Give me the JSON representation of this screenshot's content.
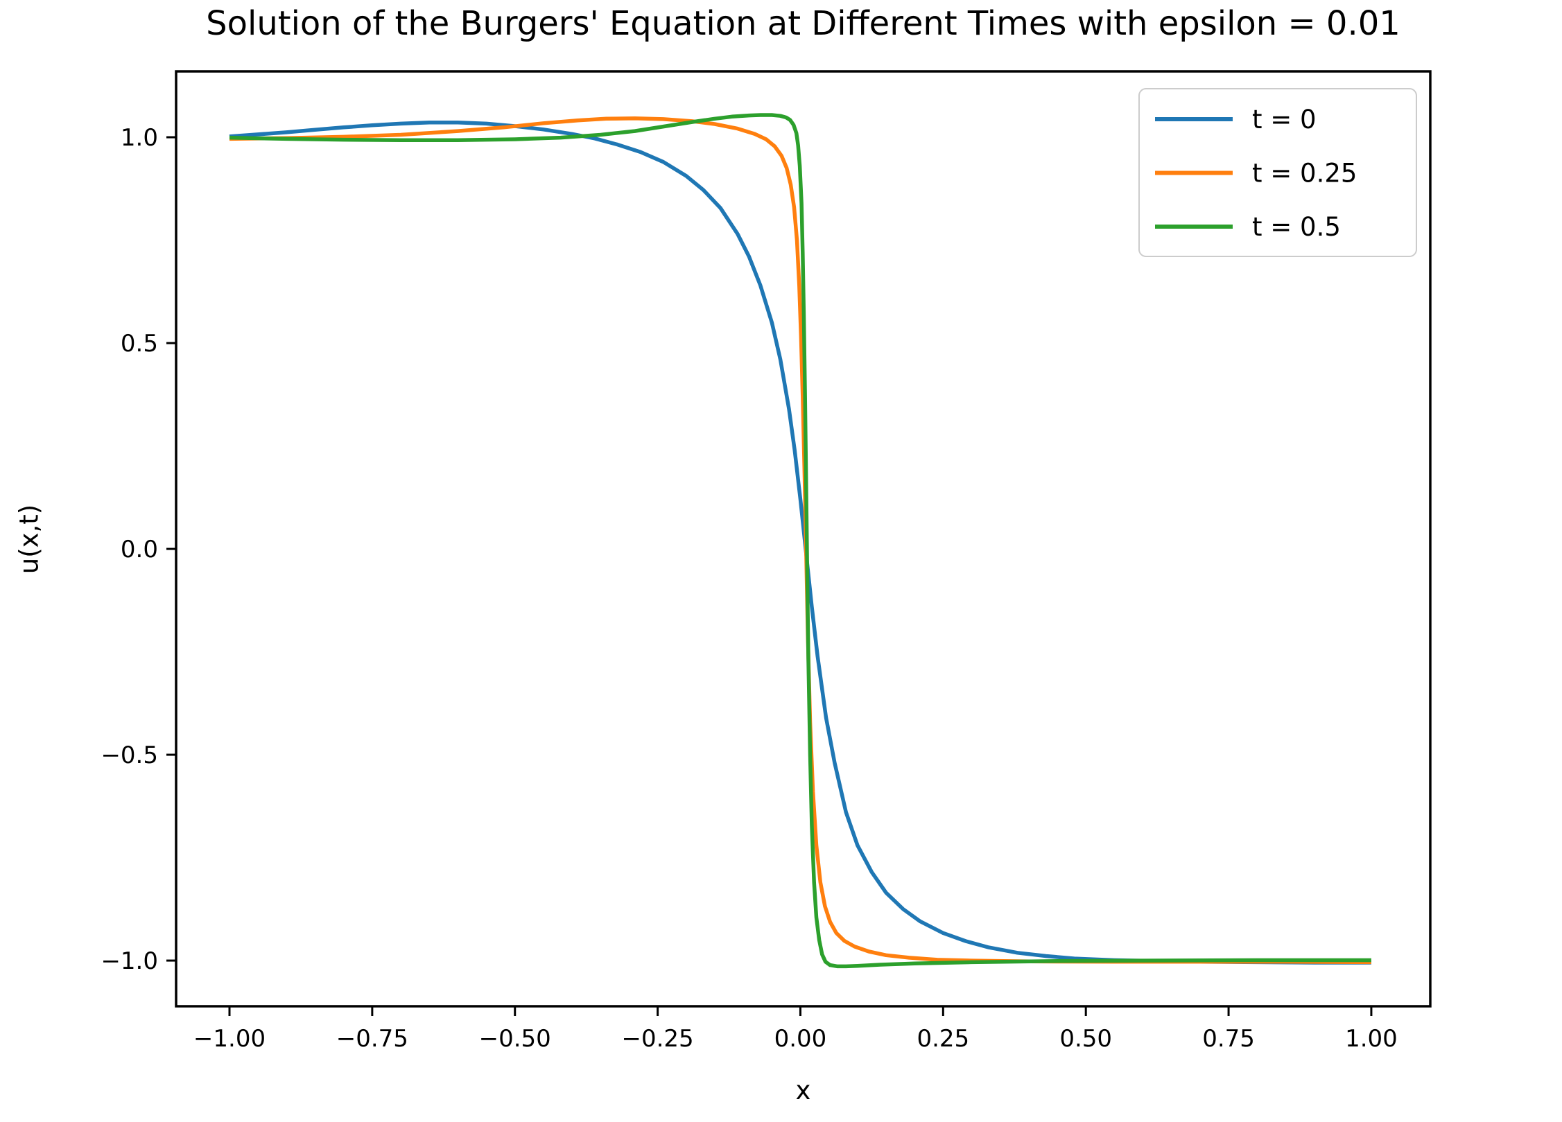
{
  "figure": {
    "background": "#ffffff"
  },
  "chart_data": {
    "type": "line",
    "title": "Solution of the Burgers' Equation at Different Times with epsilon = 0.01",
    "xlabel": "x",
    "ylabel": "u(x,t)",
    "epsilon": 0.01,
    "grid": false,
    "xlim": [
      -1.0935,
      1.1033
    ],
    "ylim": [
      -1.111,
      1.16
    ],
    "x_tick_values": [
      -1.0,
      -0.75,
      -0.5,
      -0.25,
      0.0,
      0.25,
      0.5,
      0.75,
      1.0
    ],
    "x_tick_labels": [
      "−1.00",
      "−0.75",
      "−0.50",
      "−0.25",
      "0.00",
      "0.25",
      "0.50",
      "0.75",
      "1.00"
    ],
    "y_tick_values": [
      1.0,
      0.5,
      0.0,
      -0.5,
      -1.0
    ],
    "y_tick_labels": [
      "1.0",
      "0.5",
      "0.0",
      "−0.5",
      "−1.0"
    ],
    "axis_color": "#000000",
    "legend": {
      "position": "upper right",
      "border_color": "#cccccc",
      "background": "#ffffff"
    },
    "series": [
      {
        "name": "t = 0",
        "color": "#1f77b4",
        "points": [
          [
            -1.0,
            1.002
          ],
          [
            -0.95,
            1.007
          ],
          [
            -0.9,
            1.012
          ],
          [
            -0.85,
            1.018
          ],
          [
            -0.8,
            1.024
          ],
          [
            -0.75,
            1.029
          ],
          [
            -0.7,
            1.033
          ],
          [
            -0.65,
            1.036
          ],
          [
            -0.6,
            1.036
          ],
          [
            -0.55,
            1.033
          ],
          [
            -0.5,
            1.027
          ],
          [
            -0.45,
            1.019
          ],
          [
            -0.4,
            1.008
          ],
          [
            -0.36,
            0.997
          ],
          [
            -0.32,
            0.982
          ],
          [
            -0.28,
            0.964
          ],
          [
            -0.24,
            0.94
          ],
          [
            -0.2,
            0.906
          ],
          [
            -0.17,
            0.872
          ],
          [
            -0.14,
            0.828
          ],
          [
            -0.11,
            0.765
          ],
          [
            -0.09,
            0.71
          ],
          [
            -0.07,
            0.64
          ],
          [
            -0.05,
            0.55
          ],
          [
            -0.035,
            0.46
          ],
          [
            -0.02,
            0.34
          ],
          [
            -0.01,
            0.24
          ],
          [
            0.0,
            0.12
          ],
          [
            0.01,
            -0.01
          ],
          [
            0.02,
            -0.14
          ],
          [
            0.03,
            -0.26
          ],
          [
            0.045,
            -0.41
          ],
          [
            0.06,
            -0.52
          ],
          [
            0.08,
            -0.64
          ],
          [
            0.1,
            -0.72
          ],
          [
            0.125,
            -0.785
          ],
          [
            0.15,
            -0.835
          ],
          [
            0.18,
            -0.875
          ],
          [
            0.21,
            -0.905
          ],
          [
            0.25,
            -0.933
          ],
          [
            0.29,
            -0.953
          ],
          [
            0.33,
            -0.968
          ],
          [
            0.38,
            -0.981
          ],
          [
            0.43,
            -0.989
          ],
          [
            0.48,
            -0.995
          ],
          [
            0.55,
            -0.999
          ],
          [
            0.62,
            -1.001
          ],
          [
            0.7,
            -1.003
          ],
          [
            0.8,
            -1.004
          ],
          [
            0.9,
            -1.005
          ],
          [
            1.0,
            -1.005
          ]
        ]
      },
      {
        "name": "t = 0.25",
        "color": "#ff7f0e",
        "points": [
          [
            -1.0,
            0.996
          ],
          [
            -0.9,
            0.998
          ],
          [
            -0.8,
            1.001
          ],
          [
            -0.7,
            1.006
          ],
          [
            -0.6,
            1.015
          ],
          [
            -0.52,
            1.024
          ],
          [
            -0.45,
            1.034
          ],
          [
            -0.39,
            1.041
          ],
          [
            -0.34,
            1.045
          ],
          [
            -0.29,
            1.046
          ],
          [
            -0.24,
            1.044
          ],
          [
            -0.19,
            1.039
          ],
          [
            -0.15,
            1.032
          ],
          [
            -0.11,
            1.021
          ],
          [
            -0.08,
            1.008
          ],
          [
            -0.06,
            0.995
          ],
          [
            -0.045,
            0.978
          ],
          [
            -0.033,
            0.955
          ],
          [
            -0.024,
            0.925
          ],
          [
            -0.017,
            0.885
          ],
          [
            -0.011,
            0.83
          ],
          [
            -0.006,
            0.75
          ],
          [
            -0.002,
            0.64
          ],
          [
            0.001,
            0.52
          ],
          [
            0.004,
            0.37
          ],
          [
            0.007,
            0.2
          ],
          [
            0.01,
            0.0
          ],
          [
            0.013,
            -0.21
          ],
          [
            0.017,
            -0.42
          ],
          [
            0.022,
            -0.59
          ],
          [
            0.028,
            -0.72
          ],
          [
            0.035,
            -0.81
          ],
          [
            0.043,
            -0.868
          ],
          [
            0.052,
            -0.906
          ],
          [
            0.063,
            -0.933
          ],
          [
            0.077,
            -0.952
          ],
          [
            0.095,
            -0.966
          ],
          [
            0.12,
            -0.978
          ],
          [
            0.15,
            -0.987
          ],
          [
            0.19,
            -0.993
          ],
          [
            0.24,
            -0.998
          ],
          [
            0.3,
            -1.0
          ],
          [
            0.4,
            -1.002
          ],
          [
            0.55,
            -1.003
          ],
          [
            0.7,
            -1.003
          ],
          [
            0.85,
            -1.003
          ],
          [
            1.0,
            -1.004
          ]
        ]
      },
      {
        "name": "t = 0.5",
        "color": "#2ca02c",
        "points": [
          [
            -1.0,
            0.999
          ],
          [
            -0.9,
            0.996
          ],
          [
            -0.8,
            0.994
          ],
          [
            -0.7,
            0.993
          ],
          [
            -0.6,
            0.993
          ],
          [
            -0.5,
            0.995
          ],
          [
            -0.42,
            0.999
          ],
          [
            -0.35,
            1.006
          ],
          [
            -0.29,
            1.015
          ],
          [
            -0.24,
            1.026
          ],
          [
            -0.19,
            1.037
          ],
          [
            -0.15,
            1.045
          ],
          [
            -0.12,
            1.05
          ],
          [
            -0.09,
            1.053
          ],
          [
            -0.07,
            1.054
          ],
          [
            -0.05,
            1.054
          ],
          [
            -0.035,
            1.052
          ],
          [
            -0.025,
            1.048
          ],
          [
            -0.018,
            1.042
          ],
          [
            -0.012,
            1.03
          ],
          [
            -0.007,
            1.01
          ],
          [
            -0.004,
            0.98
          ],
          [
            -0.001,
            0.93
          ],
          [
            0.002,
            0.84
          ],
          [
            0.004,
            0.72
          ],
          [
            0.006,
            0.57
          ],
          [
            0.008,
            0.38
          ],
          [
            0.01,
            0.17
          ],
          [
            0.012,
            -0.05
          ],
          [
            0.014,
            -0.27
          ],
          [
            0.017,
            -0.5
          ],
          [
            0.02,
            -0.67
          ],
          [
            0.024,
            -0.81
          ],
          [
            0.028,
            -0.895
          ],
          [
            0.033,
            -0.95
          ],
          [
            0.038,
            -0.985
          ],
          [
            0.044,
            -1.003
          ],
          [
            0.052,
            -1.011
          ],
          [
            0.065,
            -1.014
          ],
          [
            0.08,
            -1.014
          ],
          [
            0.1,
            -1.013
          ],
          [
            0.14,
            -1.01
          ],
          [
            0.2,
            -1.007
          ],
          [
            0.3,
            -1.004
          ],
          [
            0.45,
            -1.001
          ],
          [
            0.6,
            -1.0
          ],
          [
            0.8,
            -0.999
          ],
          [
            1.0,
            -0.999
          ]
        ]
      }
    ]
  }
}
